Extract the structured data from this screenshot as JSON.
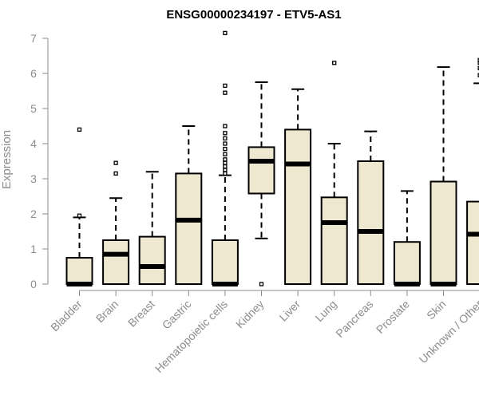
{
  "colors": {
    "box_fill": "#efe8d0",
    "stroke": "#000000",
    "axis": "#8c8c8c",
    "text": "#8c8c8c",
    "title": "#000000"
  },
  "chart_data": {
    "type": "boxplot",
    "title": "ENSG00000234197 - ETV5-AS1",
    "xlabel": "",
    "ylabel": "Expression",
    "ylim": [
      0,
      7
    ],
    "yticks": [
      0,
      1,
      2,
      3,
      4,
      5,
      6,
      7
    ],
    "categories": [
      "Bladder",
      "Brain",
      "Breast",
      "Gastric",
      "Hematopoietic cells",
      "Kidney",
      "Liver",
      "Lung",
      "Pancreas",
      "Prostate",
      "Skin",
      "Unknown / Other"
    ],
    "boxes": [
      {
        "name": "Bladder",
        "whisker_low": 0,
        "q1": 0,
        "median": 0,
        "q3": 0.75,
        "whisker_high": 1.9,
        "outliers": [
          1.95,
          4.4
        ]
      },
      {
        "name": "Brain",
        "whisker_low": 0,
        "q1": 0,
        "median": 0.85,
        "q3": 1.25,
        "whisker_high": 2.45,
        "outliers": [
          3.15,
          3.45
        ]
      },
      {
        "name": "Breast",
        "whisker_low": 0,
        "q1": 0,
        "median": 0.5,
        "q3": 1.35,
        "whisker_high": 3.2,
        "outliers": []
      },
      {
        "name": "Gastric",
        "whisker_low": 0,
        "q1": 0,
        "median": 1.82,
        "q3": 3.15,
        "whisker_high": 4.5,
        "outliers": []
      },
      {
        "name": "Hematopoietic cells",
        "whisker_low": 0,
        "q1": 0,
        "median": 0,
        "q3": 1.25,
        "whisker_high": 3.1,
        "outliers": [
          3.15,
          3.25,
          3.35,
          3.45,
          3.55,
          3.7,
          3.85,
          4.0,
          4.15,
          4.3,
          4.5,
          5.45,
          5.65,
          7.15
        ]
      },
      {
        "name": "Kidney",
        "whisker_low": 1.3,
        "q1": 2.58,
        "median": 3.5,
        "q3": 3.9,
        "whisker_high": 5.75,
        "outliers": [
          0
        ]
      },
      {
        "name": "Liver",
        "whisker_low": 0,
        "q1": 0,
        "median": 3.42,
        "q3": 4.4,
        "whisker_high": 5.55,
        "outliers": []
      },
      {
        "name": "Lung",
        "whisker_low": 0,
        "q1": 0,
        "median": 1.75,
        "q3": 2.47,
        "whisker_high": 4.0,
        "outliers": [
          6.3
        ]
      },
      {
        "name": "Pancreas",
        "whisker_low": 0,
        "q1": 0,
        "median": 1.5,
        "q3": 3.5,
        "whisker_high": 4.35,
        "outliers": []
      },
      {
        "name": "Prostate",
        "whisker_low": 0,
        "q1": 0,
        "median": 0,
        "q3": 1.2,
        "whisker_high": 2.65,
        "outliers": []
      },
      {
        "name": "Skin",
        "whisker_low": 0,
        "q1": 0,
        "median": 0,
        "q3": 2.92,
        "whisker_high": 6.18,
        "outliers": []
      },
      {
        "name": "Unknown / Other",
        "whisker_low": 0,
        "q1": 0,
        "median": 1.42,
        "q3": 2.35,
        "whisker_high": 5.72,
        "outliers": [
          5.95,
          6.15,
          6.3,
          6.38
        ]
      }
    ]
  }
}
